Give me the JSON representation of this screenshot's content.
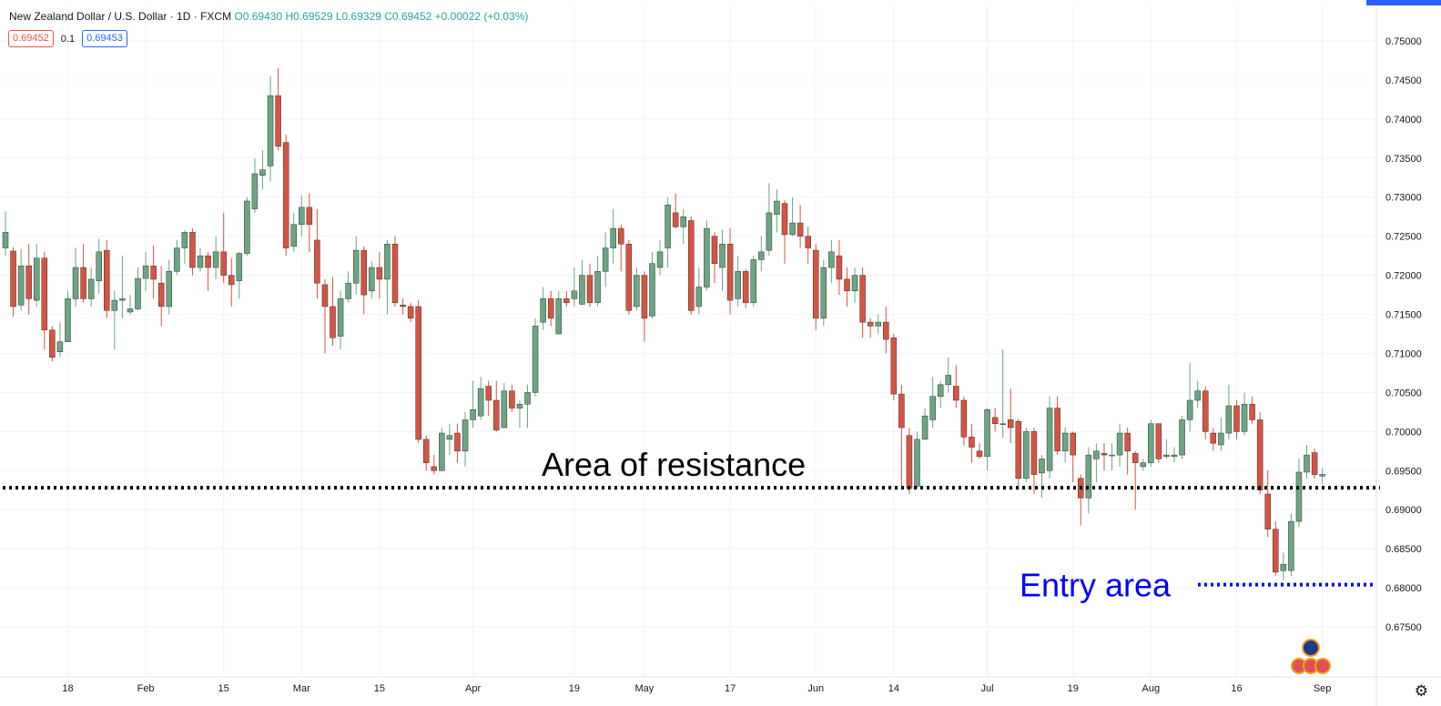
{
  "legend": {
    "symbol": "New Zealand Dollar / U.S. Dollar · 1D · FXCM",
    "open": "O0.69430",
    "high": "H0.69529",
    "low": "L0.69329",
    "close": "C0.69452",
    "change": "+0.00022 (+0.03%)"
  },
  "badges": {
    "bid": "0.69452",
    "spread": "0.1",
    "ask": "0.69453"
  },
  "colors": {
    "up": "#6ba583",
    "down": "#d75442",
    "grid": "#f0f3fa",
    "resistance": "#000000",
    "entry": "#0000ff"
  },
  "chart_data": {
    "type": "candlestick",
    "ylim": [
      0.6745,
      0.7515
    ],
    "y_ticks": [
      "0.75000",
      "0.74500",
      "0.74000",
      "0.73500",
      "0.73000",
      "0.72500",
      "0.72000",
      "0.71500",
      "0.71000",
      "0.70500",
      "0.70000",
      "0.69500",
      "0.69000",
      "0.68500",
      "0.68000",
      "0.67500"
    ],
    "x_ticks": [
      {
        "label": "18",
        "index": 8
      },
      {
        "label": "Feb",
        "index": 18
      },
      {
        "label": "15",
        "index": 28
      },
      {
        "label": "Mar",
        "index": 38
      },
      {
        "label": "15",
        "index": 48
      },
      {
        "label": "Apr",
        "index": 60
      },
      {
        "label": "19",
        "index": 73
      },
      {
        "label": "May",
        "index": 82
      },
      {
        "label": "17",
        "index": 93
      },
      {
        "label": "Jun",
        "index": 104
      },
      {
        "label": "14",
        "index": 114
      },
      {
        "label": "Jul",
        "index": 126
      },
      {
        "label": "19",
        "index": 137
      },
      {
        "label": "Aug",
        "index": 147
      },
      {
        "label": "16",
        "index": 158
      },
      {
        "label": "Sep",
        "index": 169
      }
    ],
    "annotations": [
      {
        "text": "Area of resistance",
        "type": "hline",
        "price": 0.6928,
        "style": "dotted",
        "color": "#000000"
      },
      {
        "text": "Entry area",
        "type": "hline",
        "price": 0.6804,
        "style": "dotted",
        "color": "#0000ff"
      }
    ],
    "candles": [
      [
        0.7235,
        0.7255,
        0.7225,
        0.7282
      ],
      [
        0.7231,
        0.716,
        0.7147,
        0.7236
      ],
      [
        0.7162,
        0.7212,
        0.7155,
        0.7234
      ],
      [
        0.7212,
        0.717,
        0.715,
        0.724
      ],
      [
        0.7168,
        0.7222,
        0.716,
        0.724
      ],
      [
        0.7222,
        0.713,
        0.7105,
        0.723
      ],
      [
        0.713,
        0.7095,
        0.709,
        0.7135
      ],
      [
        0.7102,
        0.7115,
        0.7095,
        0.714
      ],
      [
        0.7115,
        0.717,
        0.7115,
        0.718
      ],
      [
        0.717,
        0.721,
        0.716,
        0.7235
      ],
      [
        0.721,
        0.717,
        0.7165,
        0.724
      ],
      [
        0.717,
        0.7195,
        0.716,
        0.721
      ],
      [
        0.7193,
        0.723,
        0.7176,
        0.7247
      ],
      [
        0.7232,
        0.7155,
        0.7145,
        0.7245
      ],
      [
        0.7155,
        0.7168,
        0.7105,
        0.718
      ],
      [
        0.7168,
        0.717,
        0.7145,
        0.7225
      ],
      [
        0.7153,
        0.7157,
        0.715,
        0.7175
      ],
      [
        0.7157,
        0.7196,
        0.7155,
        0.721
      ],
      [
        0.7196,
        0.7212,
        0.718,
        0.723
      ],
      [
        0.7212,
        0.7195,
        0.717,
        0.7238
      ],
      [
        0.719,
        0.716,
        0.7135,
        0.7212
      ],
      [
        0.716,
        0.7205,
        0.715,
        0.722
      ],
      [
        0.7205,
        0.7235,
        0.72,
        0.7245
      ],
      [
        0.7235,
        0.7255,
        0.7215,
        0.7258
      ],
      [
        0.7255,
        0.721,
        0.72,
        0.726
      ],
      [
        0.721,
        0.7225,
        0.7205,
        0.7235
      ],
      [
        0.7225,
        0.721,
        0.718,
        0.723
      ],
      [
        0.721,
        0.723,
        0.7195,
        0.725
      ],
      [
        0.723,
        0.72,
        0.719,
        0.728
      ],
      [
        0.72,
        0.7188,
        0.716,
        0.7222
      ],
      [
        0.7193,
        0.7228,
        0.717,
        0.723
      ],
      [
        0.7228,
        0.7295,
        0.7225,
        0.73
      ],
      [
        0.7285,
        0.733,
        0.728,
        0.735
      ],
      [
        0.7328,
        0.7335,
        0.731,
        0.736
      ],
      [
        0.734,
        0.743,
        0.732,
        0.7455
      ],
      [
        0.743,
        0.7365,
        0.736,
        0.7465
      ],
      [
        0.737,
        0.7235,
        0.7225,
        0.738
      ],
      [
        0.7237,
        0.7265,
        0.723,
        0.728
      ],
      [
        0.7265,
        0.7287,
        0.725,
        0.7302
      ],
      [
        0.7287,
        0.7265,
        0.723,
        0.7305
      ],
      [
        0.7245,
        0.719,
        0.717,
        0.7285
      ],
      [
        0.7188,
        0.716,
        0.71,
        0.7195
      ],
      [
        0.716,
        0.712,
        0.711,
        0.7198
      ],
      [
        0.7122,
        0.717,
        0.7105,
        0.718
      ],
      [
        0.717,
        0.719,
        0.7165,
        0.7205
      ],
      [
        0.719,
        0.7232,
        0.7175,
        0.725
      ],
      [
        0.7232,
        0.7175,
        0.715,
        0.7237
      ],
      [
        0.718,
        0.721,
        0.717,
        0.7218
      ],
      [
        0.721,
        0.7195,
        0.717,
        0.723
      ],
      [
        0.7195,
        0.724,
        0.715,
        0.7245
      ],
      [
        0.724,
        0.7165,
        0.716,
        0.725
      ],
      [
        0.7162,
        0.716,
        0.715,
        0.717
      ],
      [
        0.716,
        0.7145,
        0.714,
        0.7165
      ],
      [
        0.716,
        0.699,
        0.6985,
        0.7168
      ],
      [
        0.699,
        0.696,
        0.695,
        0.6995
      ],
      [
        0.6955,
        0.695,
        0.6945,
        0.697
      ],
      [
        0.695,
        0.6998,
        0.695,
        0.7005
      ],
      [
        0.699,
        0.6995,
        0.697,
        0.701
      ],
      [
        0.6998,
        0.6975,
        0.696,
        0.701
      ],
      [
        0.6975,
        0.7015,
        0.6955,
        0.7025
      ],
      [
        0.7015,
        0.7028,
        0.7005,
        0.7065
      ],
      [
        0.702,
        0.7055,
        0.7015,
        0.707
      ],
      [
        0.7058,
        0.704,
        0.702,
        0.7065
      ],
      [
        0.704,
        0.7002,
        0.7,
        0.7065
      ],
      [
        0.7005,
        0.7052,
        0.7005,
        0.7062
      ],
      [
        0.7052,
        0.703,
        0.7025,
        0.706
      ],
      [
        0.703,
        0.7035,
        0.7005,
        0.704
      ],
      [
        0.7035,
        0.705,
        0.7005,
        0.706
      ],
      [
        0.705,
        0.7135,
        0.7045,
        0.7145
      ],
      [
        0.714,
        0.717,
        0.713,
        0.7185
      ],
      [
        0.717,
        0.7145,
        0.7135,
        0.718
      ],
      [
        0.7125,
        0.717,
        0.7125,
        0.718
      ],
      [
        0.717,
        0.7165,
        0.716,
        0.718
      ],
      [
        0.717,
        0.718,
        0.716,
        0.721
      ],
      [
        0.7163,
        0.72,
        0.7162,
        0.722
      ],
      [
        0.72,
        0.7165,
        0.716,
        0.7215
      ],
      [
        0.7165,
        0.7205,
        0.716,
        0.7225
      ],
      [
        0.7205,
        0.7235,
        0.7185,
        0.7255
      ],
      [
        0.7235,
        0.726,
        0.7215,
        0.7285
      ],
      [
        0.726,
        0.724,
        0.7205,
        0.7265
      ],
      [
        0.724,
        0.7155,
        0.715,
        0.7245
      ],
      [
        0.716,
        0.72,
        0.7155,
        0.721
      ],
      [
        0.72,
        0.7145,
        0.7115,
        0.7205
      ],
      [
        0.7148,
        0.7215,
        0.7145,
        0.723
      ],
      [
        0.721,
        0.723,
        0.72,
        0.7245
      ],
      [
        0.7235,
        0.729,
        0.721,
        0.73
      ],
      [
        0.728,
        0.7262,
        0.726,
        0.7305
      ],
      [
        0.7262,
        0.7275,
        0.724,
        0.7285
      ],
      [
        0.727,
        0.7155,
        0.715,
        0.7275
      ],
      [
        0.716,
        0.7185,
        0.715,
        0.721
      ],
      [
        0.7185,
        0.726,
        0.718,
        0.727
      ],
      [
        0.725,
        0.7215,
        0.719,
        0.7255
      ],
      [
        0.721,
        0.724,
        0.718,
        0.7258
      ],
      [
        0.724,
        0.7168,
        0.715,
        0.726
      ],
      [
        0.717,
        0.7205,
        0.716,
        0.7225
      ],
      [
        0.7205,
        0.7165,
        0.7158,
        0.7208
      ],
      [
        0.7165,
        0.722,
        0.716,
        0.7225
      ],
      [
        0.722,
        0.723,
        0.7205,
        0.725
      ],
      [
        0.7232,
        0.728,
        0.7225,
        0.7318
      ],
      [
        0.7278,
        0.7295,
        0.7255,
        0.731
      ],
      [
        0.7292,
        0.7252,
        0.7215,
        0.7296
      ],
      [
        0.7252,
        0.7267,
        0.725,
        0.73
      ],
      [
        0.7267,
        0.725,
        0.7235,
        0.729
      ],
      [
        0.725,
        0.7235,
        0.7215,
        0.7262
      ],
      [
        0.7232,
        0.7145,
        0.713,
        0.724
      ],
      [
        0.7145,
        0.721,
        0.7135,
        0.722
      ],
      [
        0.721,
        0.723,
        0.719,
        0.7245
      ],
      [
        0.7225,
        0.7195,
        0.7175,
        0.7245
      ],
      [
        0.7195,
        0.718,
        0.716,
        0.721
      ],
      [
        0.718,
        0.72,
        0.7165,
        0.721
      ],
      [
        0.72,
        0.714,
        0.712,
        0.721
      ],
      [
        0.714,
        0.7135,
        0.712,
        0.7145
      ],
      [
        0.7135,
        0.714,
        0.7125,
        0.715
      ],
      [
        0.714,
        0.7118,
        0.71,
        0.716
      ],
      [
        0.712,
        0.7048,
        0.704,
        0.7125
      ],
      [
        0.7048,
        0.7005,
        0.693,
        0.706
      ],
      [
        0.6995,
        0.6927,
        0.692,
        0.7005
      ],
      [
        0.693,
        0.699,
        0.6927,
        0.7
      ],
      [
        0.699,
        0.702,
        0.699,
        0.703
      ],
      [
        0.7015,
        0.7045,
        0.7005,
        0.707
      ],
      [
        0.7045,
        0.706,
        0.703,
        0.7065
      ],
      [
        0.706,
        0.7072,
        0.705,
        0.7095
      ],
      [
        0.7058,
        0.704,
        0.703,
        0.7085
      ],
      [
        0.704,
        0.6993,
        0.6982,
        0.7045
      ],
      [
        0.6993,
        0.698,
        0.696,
        0.701
      ],
      [
        0.6975,
        0.6968,
        0.6965,
        0.6985
      ],
      [
        0.6968,
        0.7028,
        0.695,
        0.703
      ],
      [
        0.7018,
        0.701,
        0.7,
        0.703
      ],
      [
        0.701,
        0.701,
        0.6992,
        0.7105
      ],
      [
        0.7015,
        0.7005,
        0.6985,
        0.7055
      ],
      [
        0.7013,
        0.694,
        0.693,
        0.7016
      ],
      [
        0.694,
        0.7,
        0.6935,
        0.7005
      ],
      [
        0.7,
        0.6945,
        0.692,
        0.7005
      ],
      [
        0.6947,
        0.6965,
        0.6915,
        0.697
      ],
      [
        0.695,
        0.703,
        0.694,
        0.7045
      ],
      [
        0.703,
        0.6975,
        0.697,
        0.7045
      ],
      [
        0.6975,
        0.6998,
        0.696,
        0.7005
      ],
      [
        0.6998,
        0.697,
        0.6935,
        0.7
      ],
      [
        0.694,
        0.6915,
        0.688,
        0.6945
      ],
      [
        0.6915,
        0.697,
        0.6895,
        0.698
      ],
      [
        0.6965,
        0.6975,
        0.6935,
        0.6985
      ],
      [
        0.6972,
        0.697,
        0.695,
        0.6985
      ],
      [
        0.697,
        0.697,
        0.695,
        0.6985
      ],
      [
        0.697,
        0.6998,
        0.6955,
        0.701
      ],
      [
        0.6998,
        0.6975,
        0.6945,
        0.7005
      ],
      [
        0.6972,
        0.696,
        0.69,
        0.6975
      ],
      [
        0.6955,
        0.696,
        0.695,
        0.6965
      ],
      [
        0.696,
        0.701,
        0.6955,
        0.7015
      ],
      [
        0.701,
        0.6965,
        0.696,
        0.701
      ],
      [
        0.6968,
        0.697,
        0.6965,
        0.699
      ],
      [
        0.6968,
        0.697,
        0.696,
        0.698
      ],
      [
        0.697,
        0.7015,
        0.6965,
        0.702
      ],
      [
        0.7015,
        0.704,
        0.7,
        0.7088
      ],
      [
        0.704,
        0.7052,
        0.703,
        0.7065
      ],
      [
        0.7052,
        0.7,
        0.699,
        0.7058
      ],
      [
        0.6998,
        0.6985,
        0.6975,
        0.7005
      ],
      [
        0.6983,
        0.6998,
        0.6975,
        0.7018
      ],
      [
        0.6998,
        0.7033,
        0.699,
        0.706
      ],
      [
        0.7033,
        0.7,
        0.699,
        0.704
      ],
      [
        0.7,
        0.7035,
        0.6995,
        0.705
      ],
      [
        0.7035,
        0.7015,
        0.701,
        0.7045
      ],
      [
        0.7015,
        0.6925,
        0.692,
        0.7025
      ],
      [
        0.692,
        0.6875,
        0.6865,
        0.695
      ],
      [
        0.6875,
        0.682,
        0.6815,
        0.6885
      ],
      [
        0.6822,
        0.683,
        0.681,
        0.6845
      ],
      [
        0.6822,
        0.6885,
        0.6815,
        0.6895
      ],
      [
        0.6885,
        0.6948,
        0.6878,
        0.6965
      ],
      [
        0.6948,
        0.697,
        0.694,
        0.6983
      ],
      [
        0.6973,
        0.6945,
        0.694,
        0.6978
      ],
      [
        0.6943,
        0.6945,
        0.6933,
        0.6953
      ]
    ]
  }
}
